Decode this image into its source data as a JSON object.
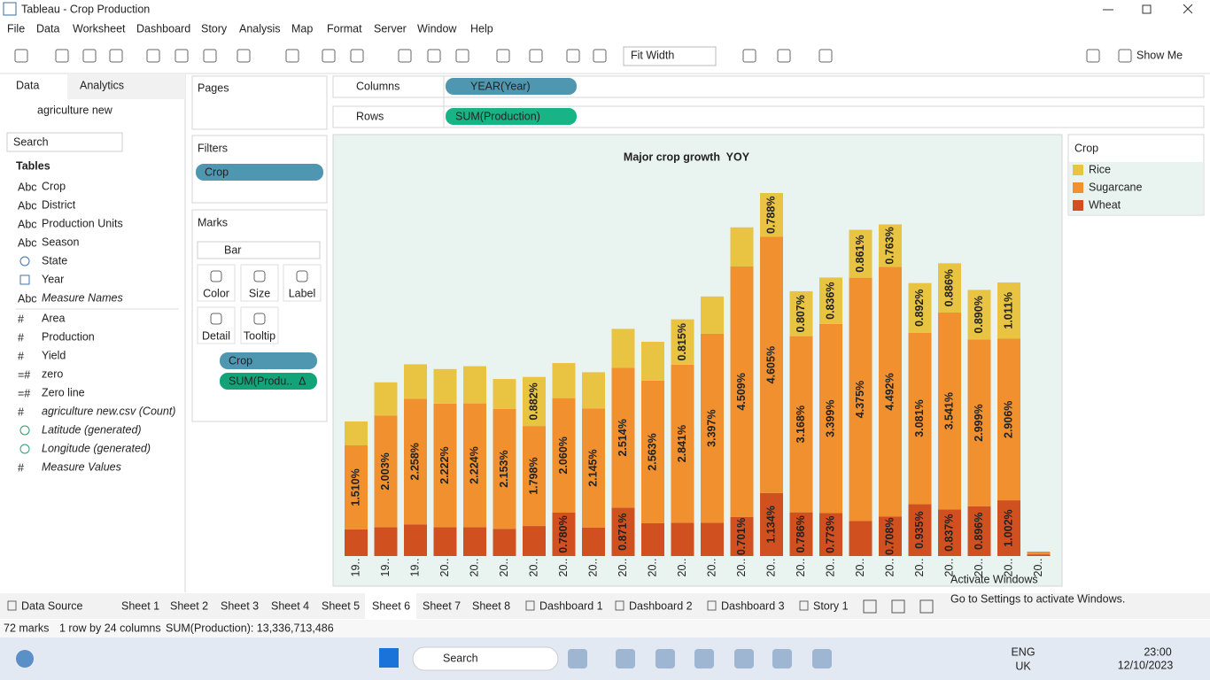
{
  "window": {
    "title": "Tableau - Crop Production"
  },
  "menu": [
    "File",
    "Data",
    "Worksheet",
    "Dashboard",
    "Story",
    "Analysis",
    "Map",
    "Format",
    "Server",
    "Window",
    "Help"
  ],
  "toolbar": {
    "fit": "Fit Width",
    "show_me": "Show Me"
  },
  "data_pane": {
    "tabs": [
      "Data",
      "Analytics"
    ],
    "source": "agriculture new",
    "search": "Search",
    "heading": "Tables",
    "fields": [
      {
        "icon": "Abc",
        "name": "Crop"
      },
      {
        "icon": "Abc",
        "name": "District"
      },
      {
        "icon": "Abc",
        "name": "Production Units"
      },
      {
        "icon": "Abc",
        "name": "Season"
      },
      {
        "name": "State"
      },
      {
        "name": "Year"
      },
      {
        "icon": "Abc",
        "name": "Measure Names"
      },
      {
        "icon": "#",
        "name": "Area"
      },
      {
        "icon": "#",
        "name": "Production"
      },
      {
        "icon": "#",
        "name": "Yield"
      },
      {
        "icon": "=#",
        "name": "zero"
      },
      {
        "icon": "=#",
        "name": "Zero line"
      },
      {
        "icon": "#",
        "name": "agriculture new.csv (Count)"
      },
      {
        "name": "Latitude (generated)"
      },
      {
        "name": "Longitude (generated)"
      },
      {
        "icon": "#",
        "name": "Measure Values"
      }
    ]
  },
  "shelves": {
    "pages": "Pages",
    "filters": "Filters",
    "filter_pill": "Crop",
    "marks": "Marks",
    "mark_type": "Bar",
    "mark_buttons": [
      "Color",
      "Size",
      "Label",
      "Detail",
      "Tooltip"
    ],
    "mark_pills": [
      "Crop",
      "SUM(Produ..  Δ"
    ],
    "columns": "Columns",
    "column_pill": "YEAR(Year)",
    "rows": "Rows",
    "row_pill": "SUM(Production)"
  },
  "chart_data": {
    "type": "stacked_bar",
    "title": "Major crop growth  YOY",
    "legend_title": "Crop",
    "categories": [
      "19..",
      "19..",
      "19..",
      "20..",
      "20..",
      "20..",
      "20..",
      "20..",
      "20..",
      "20..",
      "20..",
      "20..",
      "20..",
      "20..",
      "20..",
      "20..",
      "20..",
      "20..",
      "20..",
      "20..",
      "20..",
      "20..",
      "20..",
      "20.."
    ],
    "series": [
      {
        "name": "Rice",
        "color": "#e9c443",
        "values": [
          0.43,
          0.6,
          0.62,
          0.62,
          0.67,
          0.54,
          0.882,
          0.63,
          0.65,
          0.7,
          0.7,
          0.815,
          0.67,
          0.7,
          0.788,
          0.807,
          0.836,
          0.861,
          0.763,
          0.892,
          0.886,
          0.89,
          1.011,
          0
        ],
        "value_labels": [
          null,
          null,
          null,
          null,
          null,
          null,
          "0.882%",
          null,
          null,
          null,
          null,
          "0.815%",
          null,
          null,
          "0.788%",
          "0.807%",
          "0.836%",
          "0.861%",
          "0.763%",
          "0.892%",
          "0.886%",
          "0.890%",
          "1.011%",
          null
        ]
      },
      {
        "name": "Sugarcane",
        "color": "#f0902f",
        "values": [
          1.51,
          2.003,
          2.258,
          2.222,
          2.224,
          2.153,
          1.798,
          2.06,
          2.145,
          2.514,
          2.563,
          2.841,
          3.397,
          4.509,
          4.605,
          3.168,
          3.399,
          4.375,
          4.492,
          3.081,
          3.541,
          2.999,
          2.906,
          0.05
        ],
        "value_labels": [
          "1.510%",
          "2.003%",
          "2.258%",
          "2.222%",
          "2.224%",
          "2.153%",
          "1.798%",
          "2.060%",
          "2.145%",
          "2.514%",
          "2.563%",
          "2.841%",
          "3.397%",
          "4.509%",
          "4.605%",
          "3.168%",
          "3.399%",
          "4.375%",
          "4.492%",
          "3.081%",
          "3.541%",
          "2.999%",
          "2.906%",
          null
        ]
      },
      {
        "name": "Wheat",
        "color": "#d1501f",
        "values": [
          0.48,
          0.52,
          0.57,
          0.52,
          0.52,
          0.49,
          0.54,
          0.78,
          0.51,
          0.871,
          0.59,
          0.6,
          0.6,
          0.701,
          1.134,
          0.786,
          0.773,
          0.63,
          0.708,
          0.935,
          0.837,
          0.896,
          1.002,
          0.03
        ],
        "value_labels": [
          null,
          null,
          null,
          null,
          null,
          null,
          null,
          "0.780%",
          null,
          "0.871%",
          null,
          null,
          null,
          "0.701%",
          "1.134%",
          "0.786%",
          "0.773%",
          null,
          "0.708%",
          "0.935%",
          "0.837%",
          "0.896%",
          "1.002%",
          null
        ]
      }
    ]
  },
  "tabs": [
    "Data Source",
    "Sheet 1",
    "Sheet 2",
    "Sheet 3",
    "Sheet 4",
    "Sheet 5",
    "Sheet 6",
    "Sheet 7",
    "Sheet 8",
    "Dashboard 1",
    "Dashboard 2",
    "Dashboard 3",
    "Story 1"
  ],
  "status": [
    "72 marks",
    "1 row by 24 columns",
    "SUM(Production): 13,336,713,486"
  ],
  "watermark": [
    "Activate Windows",
    "Go to Settings to activate Windows."
  ],
  "taskbar": {
    "search": "Search",
    "lang": [
      "ENG",
      "UK"
    ],
    "time": "23:00",
    "date": "12/10/2023"
  }
}
